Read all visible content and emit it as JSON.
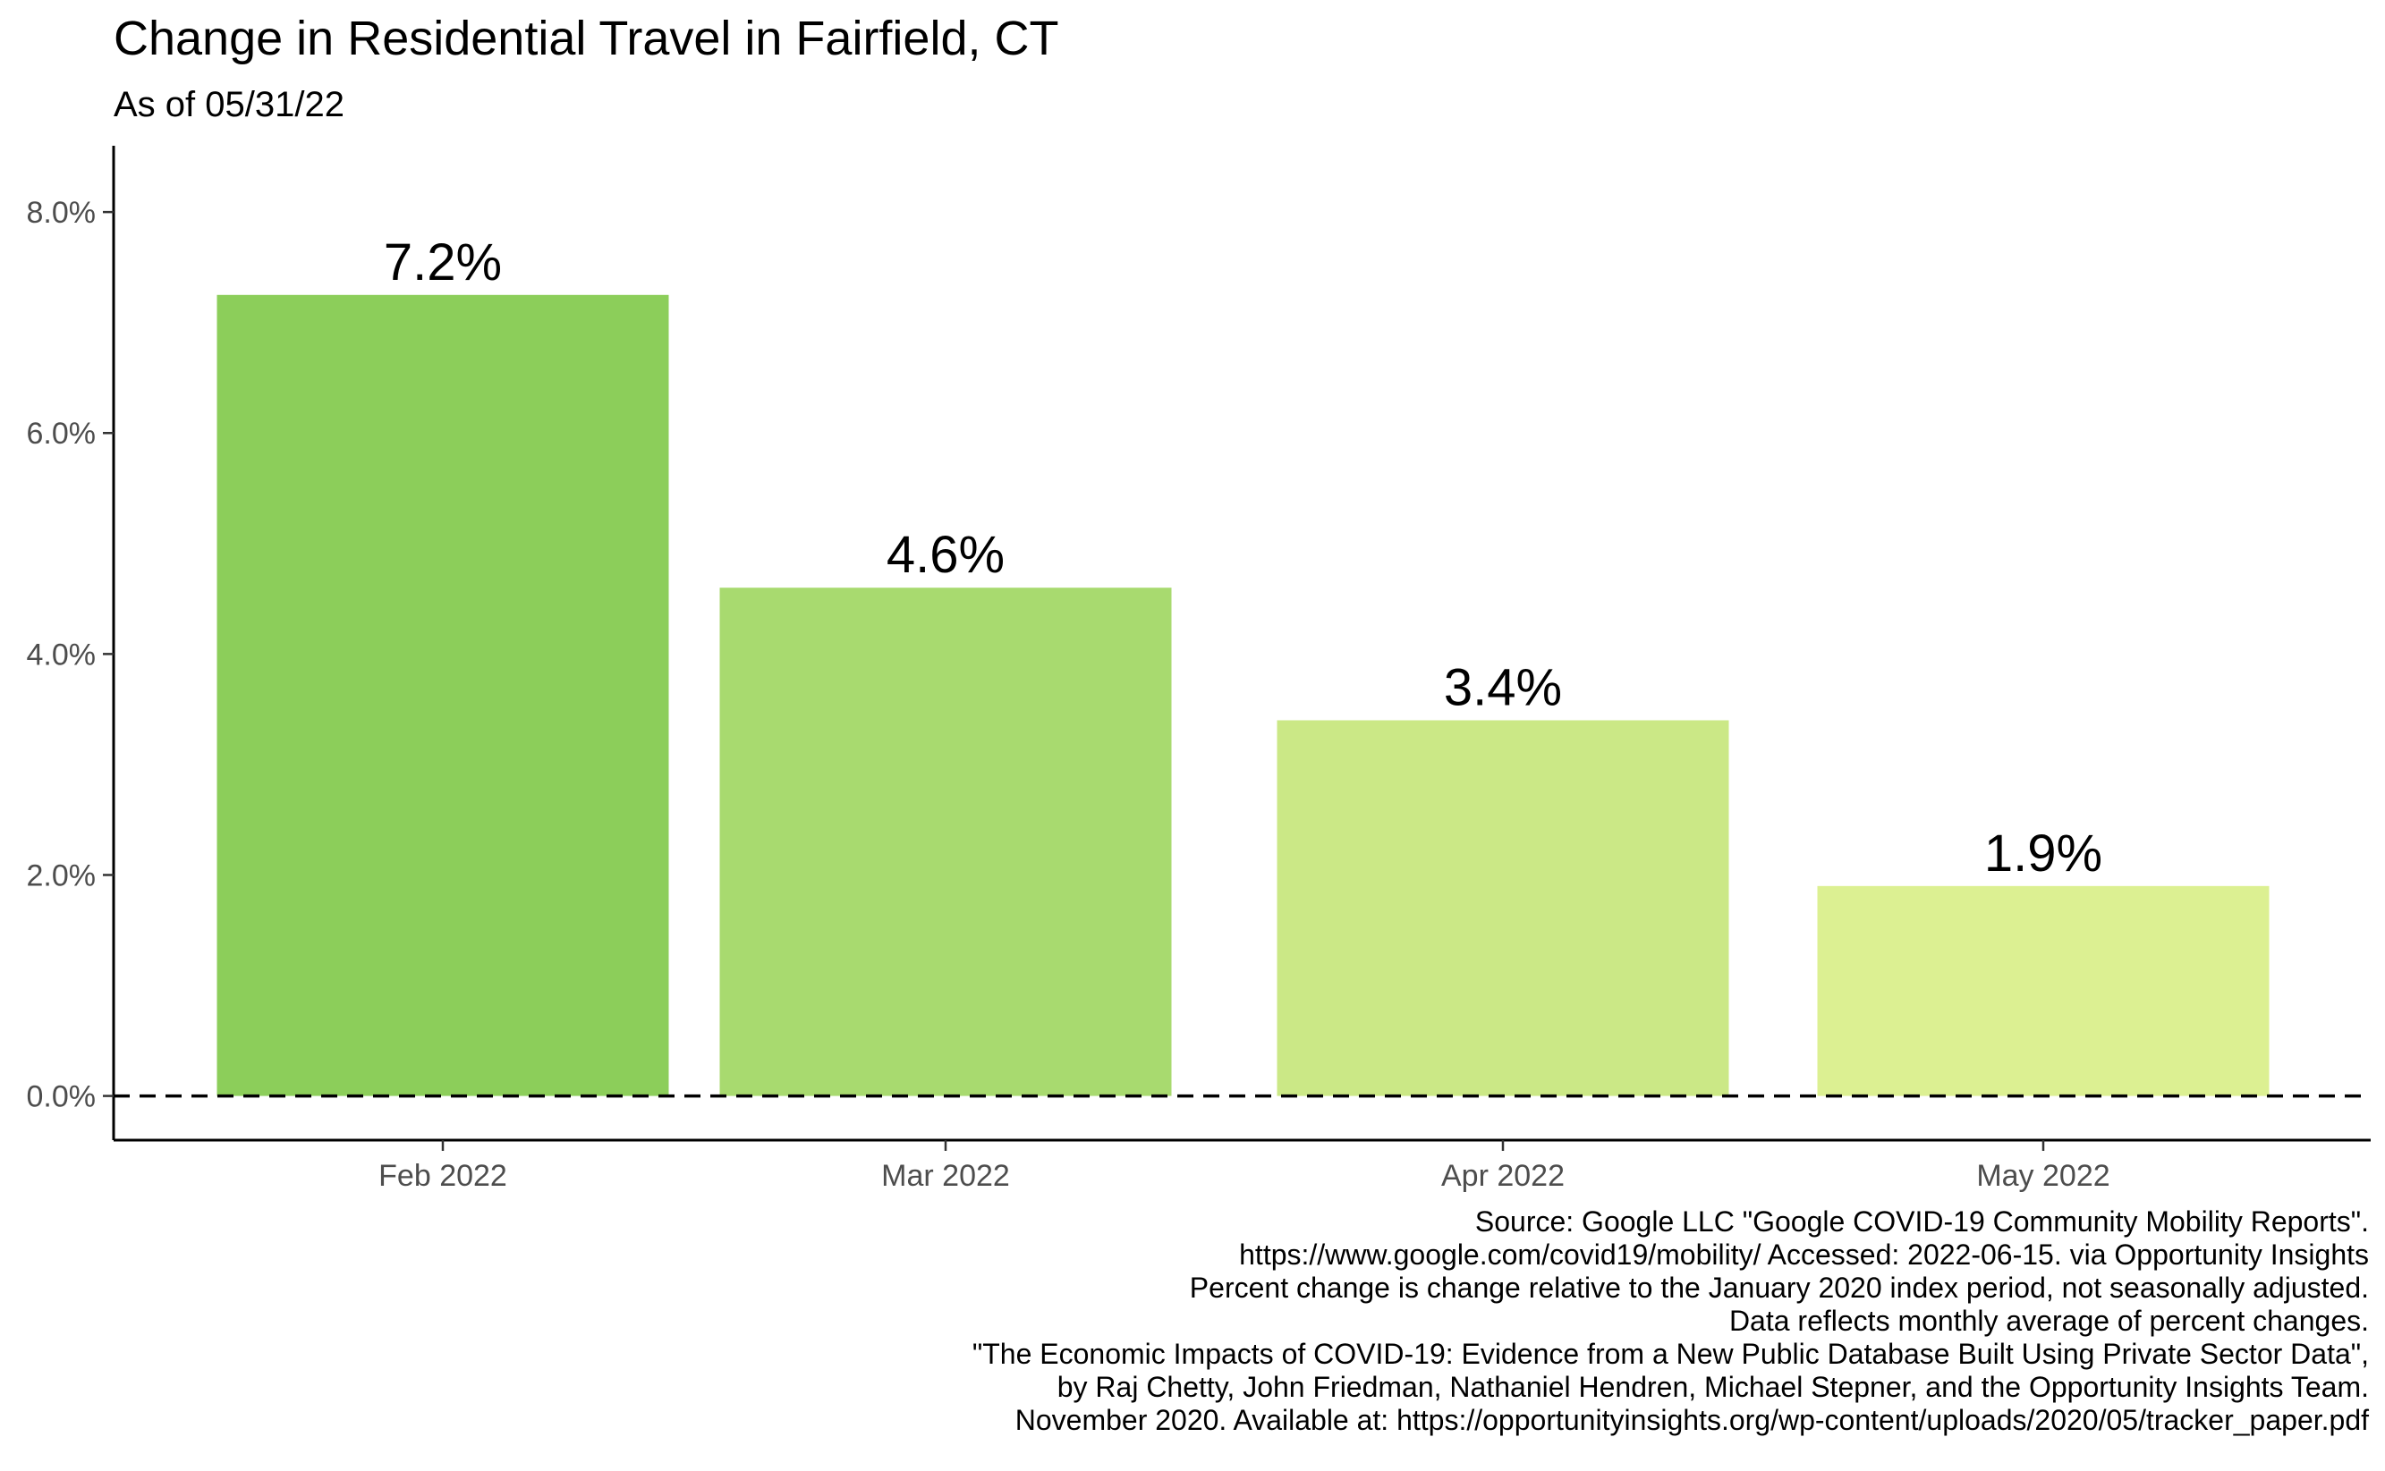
{
  "chart_data": {
    "type": "bar",
    "title": "Change in Residential Travel in Fairfield, CT",
    "subtitle": "As of 05/31/22",
    "xlabel": "",
    "ylabel": "",
    "categories": [
      "Feb 2022",
      "Mar 2022",
      "Apr 2022",
      "May 2022"
    ],
    "values": [
      7.25,
      4.6,
      3.4,
      1.9
    ],
    "data_labels": [
      "7.2%",
      "4.6%",
      "3.4%",
      "1.9%"
    ],
    "colors": [
      "#8cce5a",
      "#a8da6f",
      "#cbe886",
      "#dcf092"
    ],
    "ylim": [
      -0.4,
      8.6
    ],
    "yticks": [
      0,
      2,
      4,
      6,
      8
    ],
    "ytick_labels": [
      "0.0%",
      "2.0%",
      "4.0%",
      "6.0%",
      "8.0%"
    ],
    "reference_line": {
      "value": 0,
      "style": "dashed"
    },
    "grid": false,
    "legend": "none",
    "caption": [
      "Source: Google LLC \"Google COVID-19 Community Mobility Reports\".",
      "https://www.google.com/covid19/mobility/ Accessed: 2022-06-15. via Opportunity Insights",
      "Percent change is change relative to the January 2020 index period, not seasonally adjusted.",
      "Data reflects monthly average of percent changes.",
      "\"The Economic Impacts of COVID-19: Evidence from a New Public Database Built Using Private Sector Data\",",
      "by Raj Chetty, John Friedman, Nathaniel Hendren, Michael Stepner, and the Opportunity Insights Team.",
      "November 2020. Available at: https://opportunityinsights.org/wp-content/uploads/2020/05/tracker_paper.pdf"
    ]
  }
}
